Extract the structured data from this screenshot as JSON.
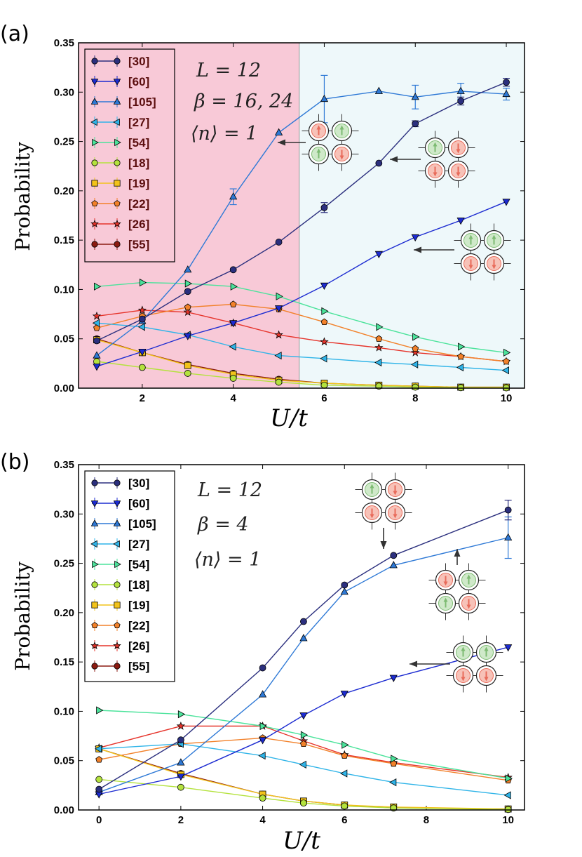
{
  "colors": {
    "s30": "#2b2f7e",
    "s60": "#1c2bd1",
    "s105": "#2e79d6",
    "s27": "#2fb4e8",
    "s54": "#4be39b",
    "s18": "#b4e23e",
    "s19": "#f2c31a",
    "s22": "#f2812a",
    "s26": "#e6332a",
    "s55": "#8b1a10",
    "regionLow": "#f8c9d7",
    "regionHigh": "#eef8fa",
    "divider": "#999999",
    "arrow": "#333333"
  },
  "series_meta": [
    {
      "key": "s30",
      "name": "[30]",
      "marker": "circle"
    },
    {
      "key": "s60",
      "name": "[60]",
      "marker": "tri-down"
    },
    {
      "key": "s105",
      "name": "[105]",
      "marker": "tri-up"
    },
    {
      "key": "s27",
      "name": "[27]",
      "marker": "tri-left"
    },
    {
      "key": "s54",
      "name": "[54]",
      "marker": "tri-right"
    },
    {
      "key": "s18",
      "name": "[18]",
      "marker": "circle"
    },
    {
      "key": "s19",
      "name": "[19]",
      "marker": "square"
    },
    {
      "key": "s22",
      "name": "[22]",
      "marker": "pentagon"
    },
    {
      "key": "s26",
      "name": "[26]",
      "marker": "star"
    },
    {
      "key": "s55",
      "name": "[55]",
      "marker": "circle"
    }
  ],
  "chart_data": [
    {
      "type": "line",
      "panel_label": "(a)",
      "xlabel": "U/t",
      "ylabel": "Probability",
      "xlim": [
        0.6,
        10.4
      ],
      "ylim": [
        0.0,
        0.35
      ],
      "xticks": [
        2,
        4,
        6,
        8,
        10
      ],
      "yticks": [
        0.0,
        0.05,
        0.1,
        0.15,
        0.2,
        0.25,
        0.3,
        0.35
      ],
      "region_split_x": 5.45,
      "annotation": [
        "L = 12",
        "β = 16, 24",
        "⟨n⟩ = 1"
      ],
      "series": [
        {
          "name": "[30]",
          "x": [
            1,
            2,
            3,
            4,
            5,
            6,
            7.2,
            8,
            9,
            10
          ],
          "values": [
            0.048,
            0.07,
            0.098,
            0.12,
            0.148,
            0.183,
            0.228,
            0.268,
            0.291,
            0.31
          ],
          "err": [
            0,
            0,
            0,
            0,
            0,
            0.005,
            0,
            0.003,
            0.004,
            0.004
          ]
        },
        {
          "name": "[60]",
          "x": [
            1,
            2,
            3,
            4,
            5,
            6,
            7.2,
            8,
            9,
            10
          ],
          "values": [
            0.022,
            0.037,
            0.053,
            0.066,
            0.081,
            0.104,
            0.136,
            0.153,
            0.17,
            0.189
          ],
          "err": [
            0,
            0,
            0,
            0,
            0,
            0,
            0,
            0,
            0,
            0
          ]
        },
        {
          "name": "[105]",
          "x": [
            1,
            2,
            3,
            4,
            5,
            6,
            7.2,
            8,
            9,
            10
          ],
          "values": [
            0.033,
            0.068,
            0.12,
            0.194,
            0.259,
            0.293,
            0.301,
            0.295,
            0.301,
            0.298
          ],
          "err": [
            0,
            0,
            0,
            0.008,
            0,
            0.024,
            0,
            0.012,
            0.008,
            0.006
          ]
        },
        {
          "name": "[27]",
          "x": [
            1,
            2,
            3,
            4,
            5,
            6,
            7.2,
            8,
            9,
            10
          ],
          "values": [
            0.066,
            0.062,
            0.054,
            0.042,
            0.033,
            0.03,
            0.026,
            0.024,
            0.021,
            0.018
          ],
          "err": [
            0,
            0,
            0,
            0,
            0,
            0,
            0,
            0,
            0,
            0
          ]
        },
        {
          "name": "[54]",
          "x": [
            1,
            2,
            3,
            4,
            5,
            6,
            7.2,
            8,
            9,
            10
          ],
          "values": [
            0.103,
            0.107,
            0.106,
            0.103,
            0.093,
            0.078,
            0.062,
            0.052,
            0.042,
            0.036
          ],
          "err": [
            0,
            0,
            0,
            0,
            0,
            0,
            0,
            0,
            0,
            0
          ]
        },
        {
          "name": "[18]",
          "x": [
            1,
            2,
            3,
            4,
            5,
            6,
            7.2,
            8,
            9,
            10
          ],
          "values": [
            0.027,
            0.021,
            0.015,
            0.01,
            0.006,
            0.003,
            0.002,
            0.001,
            0.0005,
            0.0003
          ],
          "err": [
            0,
            0,
            0,
            0,
            0,
            0,
            0,
            0,
            0,
            0
          ]
        },
        {
          "name": "[19]",
          "x": [
            1,
            2,
            3,
            4,
            5,
            6,
            7.2,
            8,
            9,
            10
          ],
          "values": [
            0.049,
            0.036,
            0.023,
            0.014,
            0.008,
            0.005,
            0.003,
            0.002,
            0.001,
            0.001
          ],
          "err": [
            0,
            0,
            0,
            0,
            0,
            0,
            0,
            0,
            0,
            0
          ]
        },
        {
          "name": "[22]",
          "x": [
            1,
            2,
            3,
            4,
            5,
            6,
            7.2,
            8,
            9,
            10
          ],
          "values": [
            0.061,
            0.073,
            0.082,
            0.085,
            0.08,
            0.067,
            0.05,
            0.04,
            0.032,
            0.027
          ],
          "err": [
            0,
            0,
            0,
            0,
            0,
            0,
            0,
            0,
            0,
            0
          ]
        },
        {
          "name": "[26]",
          "x": [
            1,
            2,
            3,
            4,
            5,
            6,
            7.2,
            8,
            9,
            10
          ],
          "values": [
            0.073,
            0.079,
            0.077,
            0.066,
            0.054,
            0.047,
            0.041,
            0.036,
            0.032,
            0.027
          ],
          "err": [
            0,
            0,
            0,
            0,
            0,
            0,
            0,
            0,
            0,
            0
          ]
        },
        {
          "name": "[55]",
          "x": [
            1,
            2,
            3,
            4,
            5,
            6,
            7.2,
            8,
            9,
            10
          ],
          "values": [
            0.05,
            0.036,
            0.024,
            0.015,
            0.009,
            0.005,
            0.003,
            0.002,
            0.001,
            0.001
          ],
          "err": [
            0,
            0,
            0,
            0,
            0,
            0,
            0,
            0,
            0,
            0
          ]
        }
      ]
    },
    {
      "type": "line",
      "panel_label": "(b)",
      "xlabel": "U/t",
      "ylabel": "Probability",
      "xlim": [
        -0.5,
        10.4
      ],
      "ylim": [
        0.0,
        0.35
      ],
      "xticks": [
        0,
        2,
        4,
        6,
        8,
        10
      ],
      "yticks": [
        0.0,
        0.05,
        0.1,
        0.15,
        0.2,
        0.25,
        0.3,
        0.35
      ],
      "annotation": [
        "L = 12",
        "β = 4",
        "⟨n⟩ = 1"
      ],
      "series": [
        {
          "name": "[30]",
          "x": [
            0,
            2,
            4,
            5,
            6,
            7.2,
            10
          ],
          "values": [
            0.021,
            0.071,
            0.144,
            0.191,
            0.228,
            0.258,
            0.304
          ],
          "err": [
            0,
            0,
            0,
            0,
            0,
            0,
            0.01
          ]
        },
        {
          "name": "[60]",
          "x": [
            0,
            2,
            4,
            5,
            6,
            7.2,
            10
          ],
          "values": [
            0.016,
            0.034,
            0.071,
            0.096,
            0.118,
            0.134,
            0.165
          ],
          "err": [
            0,
            0,
            0,
            0,
            0,
            0,
            0
          ]
        },
        {
          "name": "[105]",
          "x": [
            0,
            2,
            4,
            5,
            6,
            7.2,
            10
          ],
          "values": [
            0.018,
            0.048,
            0.117,
            0.174,
            0.221,
            0.248,
            0.276
          ],
          "err": [
            0,
            0,
            0,
            0,
            0,
            0,
            0.021
          ]
        },
        {
          "name": "[27]",
          "x": [
            0,
            2,
            4,
            5,
            6,
            7.2,
            10
          ],
          "values": [
            0.062,
            0.067,
            0.055,
            0.046,
            0.037,
            0.028,
            0.015
          ],
          "err": [
            0,
            0,
            0,
            0,
            0,
            0,
            0
          ]
        },
        {
          "name": "[54]",
          "x": [
            0,
            2,
            4,
            5,
            6,
            7.2,
            10
          ],
          "values": [
            0.101,
            0.097,
            0.085,
            0.076,
            0.066,
            0.052,
            0.032
          ],
          "err": [
            0,
            0,
            0,
            0,
            0,
            0,
            0
          ]
        },
        {
          "name": "[18]",
          "x": [
            0,
            2,
            4,
            5,
            6,
            7.2,
            10
          ],
          "values": [
            0.031,
            0.023,
            0.012,
            0.007,
            0.004,
            0.002,
            0.0005
          ],
          "err": [
            0,
            0,
            0,
            0,
            0,
            0,
            0
          ]
        },
        {
          "name": "[19]",
          "x": [
            0,
            2,
            4,
            5,
            6,
            7.2,
            10
          ],
          "values": [
            0.062,
            0.036,
            0.016,
            0.009,
            0.005,
            0.003,
            0.001
          ],
          "err": [
            0,
            0,
            0,
            0,
            0,
            0,
            0
          ]
        },
        {
          "name": "[22]",
          "x": [
            0,
            2,
            4,
            5,
            6,
            7.2,
            10
          ],
          "values": [
            0.051,
            0.067,
            0.073,
            0.067,
            0.055,
            0.047,
            0.03
          ],
          "err": [
            0,
            0,
            0,
            0,
            0,
            0,
            0
          ]
        },
        {
          "name": "[26]",
          "x": [
            0,
            2,
            4,
            5,
            6,
            7.2,
            10
          ],
          "values": [
            0.063,
            0.085,
            0.085,
            0.07,
            0.056,
            0.048,
            0.033
          ],
          "err": [
            0,
            0,
            0,
            0,
            0,
            0,
            0
          ]
        },
        {
          "name": "[55]",
          "x": [
            0,
            2,
            4,
            5,
            6,
            7.2,
            10
          ],
          "values": [
            0.062,
            0.037,
            0.016,
            0.009,
            0.005,
            0.002,
            0.001
          ],
          "err": [
            0,
            0,
            0,
            0,
            0,
            0,
            0
          ]
        }
      ]
    }
  ]
}
